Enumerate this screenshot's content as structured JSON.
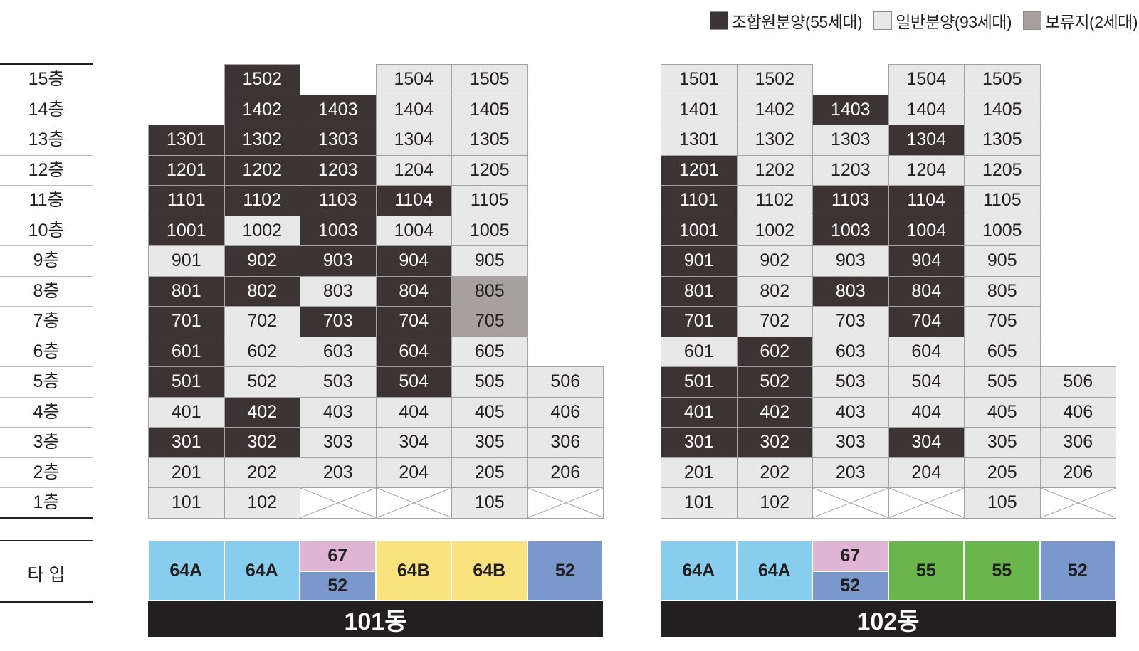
{
  "legend": [
    {
      "status": "union",
      "label": "조합원분양(55세대)",
      "color": "#3b3334"
    },
    {
      "status": "general",
      "label": "일반분양(93세대)",
      "color": "#e8e8e8"
    },
    {
      "status": "reserved",
      "label": "보류지(2세대)",
      "color": "#a6a09e"
    }
  ],
  "floors": [
    "15층",
    "14층",
    "13층",
    "12층",
    "11층",
    "10층",
    "9층",
    "8층",
    "7층",
    "6층",
    "5층",
    "4층",
    "3층",
    "2층",
    "1층"
  ],
  "type_label": "타 입",
  "colors": {
    "union": "#3b3334",
    "general": "#e8e8e8",
    "reserved": "#a6a09e",
    "type_64A": "#87cded",
    "type_67": "#e0b4d5",
    "type_52": "#7a98cc",
    "type_64B": "#fae27f",
    "type_55": "#6ab64c"
  },
  "buildings": [
    {
      "name": "101동",
      "grid": [
        [
          "",
          "1502:U",
          "",
          "1504:G",
          "1505:G",
          ""
        ],
        [
          "",
          "1402:U",
          "1403:U",
          "1404:G",
          "1405:G",
          ""
        ],
        [
          "1301:U",
          "1302:U",
          "1303:U",
          "1304:G",
          "1305:G",
          ""
        ],
        [
          "1201:U",
          "1202:U",
          "1203:U",
          "1204:G",
          "1205:G",
          ""
        ],
        [
          "1101:U",
          "1102:U",
          "1103:U",
          "1104:U",
          "1105:G",
          ""
        ],
        [
          "1001:U",
          "1002:G",
          "1003:U",
          "1004:G",
          "1005:G",
          ""
        ],
        [
          "901:G",
          "902:U",
          "903:U",
          "904:U",
          "905:G",
          ""
        ],
        [
          "801:U",
          "802:U",
          "803:G",
          "804:U",
          "805:R",
          ""
        ],
        [
          "701:U",
          "702:G",
          "703:U",
          "704:U",
          "705:R",
          ""
        ],
        [
          "601:U",
          "602:G",
          "603:G",
          "604:U",
          "605:G",
          ""
        ],
        [
          "501:U",
          "502:G",
          "503:G",
          "504:U",
          "505:G",
          "506:G"
        ],
        [
          "401:G",
          "402:U",
          "403:G",
          "404:G",
          "405:G",
          "406:G"
        ],
        [
          "301:U",
          "302:U",
          "303:G",
          "304:G",
          "305:G",
          "306:G"
        ],
        [
          "201:G",
          "202:G",
          "203:G",
          "204:G",
          "205:G",
          "206:G"
        ],
        [
          "101:G",
          "102:G",
          "X",
          "X",
          "105:G",
          "X"
        ]
      ],
      "types": [
        [
          "64A"
        ],
        [
          "64A"
        ],
        [
          "67",
          "52"
        ],
        [
          "64B"
        ],
        [
          "64B"
        ],
        [
          "52"
        ]
      ]
    },
    {
      "name": "102동",
      "grid": [
        [
          "1501:G",
          "1502:G",
          "",
          "1504:G",
          "1505:G",
          ""
        ],
        [
          "1401:G",
          "1402:G",
          "1403:U",
          "1404:G",
          "1405:G",
          ""
        ],
        [
          "1301:G",
          "1302:G",
          "1303:G",
          "1304:U",
          "1305:G",
          ""
        ],
        [
          "1201:U",
          "1202:G",
          "1203:G",
          "1204:G",
          "1205:G",
          ""
        ],
        [
          "1101:U",
          "1102:G",
          "1103:U",
          "1104:U",
          "1105:G",
          ""
        ],
        [
          "1001:U",
          "1002:G",
          "1003:U",
          "1004:U",
          "1005:G",
          ""
        ],
        [
          "901:U",
          "902:G",
          "903:G",
          "904:U",
          "905:G",
          ""
        ],
        [
          "801:U",
          "802:G",
          "803:U",
          "804:U",
          "805:G",
          ""
        ],
        [
          "701:U",
          "702:G",
          "703:G",
          "704:U",
          "705:G",
          ""
        ],
        [
          "601:G",
          "602:U",
          "603:G",
          "604:G",
          "605:G",
          ""
        ],
        [
          "501:U",
          "502:U",
          "503:G",
          "504:G",
          "505:G",
          "506:G"
        ],
        [
          "401:U",
          "402:U",
          "403:G",
          "404:G",
          "405:G",
          "406:G"
        ],
        [
          "301:U",
          "302:U",
          "303:G",
          "304:U",
          "305:G",
          "306:G"
        ],
        [
          "201:G",
          "202:G",
          "203:G",
          "204:G",
          "205:G",
          "206:G"
        ],
        [
          "101:G",
          "102:G",
          "X",
          "X",
          "105:G",
          "X"
        ]
      ],
      "types": [
        [
          "64A"
        ],
        [
          "64A"
        ],
        [
          "67",
          "52"
        ],
        [
          "55"
        ],
        [
          "55"
        ],
        [
          "52"
        ]
      ]
    }
  ]
}
